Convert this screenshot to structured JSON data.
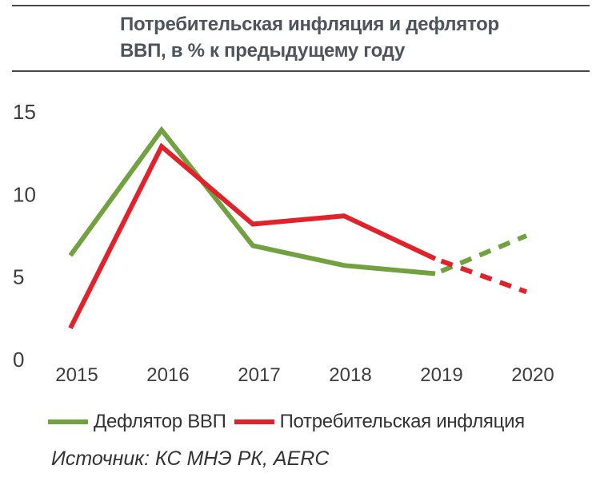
{
  "chart_data": {
    "type": "line",
    "title": "Потребительская инфляция и дефлятор ВВП, в % к предыдущему году",
    "title_lines": [
      "Потребительская инфляция и дефлятор",
      "ВВП, в % к предыдущему году"
    ],
    "x": [
      "2015",
      "2016",
      "2017",
      "2018",
      "2019",
      "2020"
    ],
    "series": [
      {
        "name": "Дефлятор ВВП",
        "color": "#71A23F",
        "values": [
          6.3,
          13.9,
          6.9,
          5.7,
          5.2,
          7.5
        ],
        "dashed_from_index": 4
      },
      {
        "name": "Потребительская инфляция",
        "color": "#E2222A",
        "values": [
          1.9,
          12.9,
          8.2,
          8.7,
          6.1,
          4.1
        ],
        "dashed_from_index": 4
      }
    ],
    "ylim": [
      0,
      15
    ],
    "yticks": [
      0,
      5,
      10,
      15
    ],
    "xlabel": "",
    "ylabel": "",
    "grid": false,
    "legend_position": "bottom"
  },
  "source": {
    "label": "Источник: КС МНЭ РК, AERC"
  },
  "colors": {
    "deflator_green": "#71A23F",
    "inflation_red": "#E2222A",
    "title_gray": "#4D545C",
    "rule_gray": "#45494D",
    "axis_text": "#3D3D3D",
    "body_text": "#333333"
  }
}
